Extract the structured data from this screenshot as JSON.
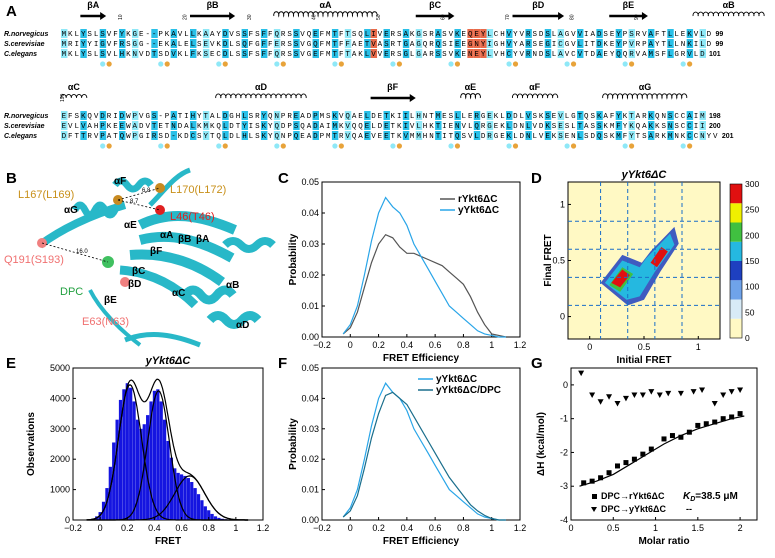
{
  "panel_letters": {
    "A": "A",
    "B": "B",
    "C": "C",
    "D": "D",
    "E": "E",
    "F": "F",
    "G": "G"
  },
  "alignment": {
    "species": [
      "R.norvegicus",
      "S.cerevisiae",
      "C.elegans"
    ],
    "block1": {
      "ss": [
        "βA",
        "βB",
        "αA",
        "βC",
        "βD",
        "βE",
        "αB"
      ],
      "seqs": [
        "MKLYSLSVFYKGE--PKAVLLKAAYDVSSFSFFQRSSVQEFMTFTSQLIVERSAKGSRASVKEQEYLCHVYVRSDSLAGVVIADSEYPSRVAFTLLEKVLD",
        "MRIYYIGVFRSGG--EKALELSEVKDLSQFGFFERSSVGQFMTFFAETVASRTGAGQRQSIEEGNYIGHVYARSEGICGVLITDKEYPVRPAYTLLNKILD",
        "MKLYSLSVLHKNVDTSDVKLFKSECDLSSFSFFQRSSVGEFMTFTAKLVVERSGLGARSSVKENEYLVHCYVRNDSLAVCVTDAEYQQRVAMSFLGRVLD"
      ],
      "ends": [
        "99",
        "99",
        "101"
      ],
      "ticks": [
        "10",
        "20",
        "30",
        "40",
        "50",
        "60",
        "70",
        "80",
        "90"
      ]
    },
    "block2": {
      "ss": [
        "αC",
        "αD",
        "βF",
        "αE",
        "αF",
        "αG"
      ],
      "seqs": [
        "EFSKQVDRIDWPVGS-PATIHYTALDGHLSRYQNPREADPMSKVQAELDETKIILHNTMESLLERGEKLDDLVSKSEVLGTQSKAFYKTARKQNSCCAIM",
        "EVLVAHPKEEWADVTETNDALKMKQLDTYISKYQDPSQADAIMKVQQELDETKIVLHKTIENVLQRGEKLDNLVDKSESLTASSKMFYKQAKKSNSCCII",
        "DFTTRVPATQWPGIRSD-KDCSYTQLDLHLSKYQNPQEADPMTRVQAEVEETKVMMHNTITQSVLDRGEKLDNLVEKSENLSDQSKMFYTSARKMNKCCNYV"
      ],
      "ends": [
        "198",
        "200",
        "201"
      ],
      "ticks": [
        "100",
        "110",
        "120",
        "130",
        "140",
        "150",
        "160",
        "170",
        "180",
        "190"
      ]
    }
  },
  "structure_labels": {
    "l170": "L170(L172)",
    "l167": "L167(L169)",
    "l46": "L46(T46)",
    "q191": "Q191(S193)",
    "dpc": "DPC",
    "e63": "E63(N63)",
    "d1": "6.8",
    "d2": "8.7",
    "d3": "16.0",
    "aF": "αF",
    "aG": "αG",
    "aE": "αE",
    "aA": "αA",
    "bB": "βB",
    "bA": "βA",
    "bF": "βF",
    "bC": "βC",
    "bD": "βD",
    "bE": "βE",
    "aC": "αC",
    "aB": "αB",
    "aD": "αD"
  },
  "colors": {
    "cyan": "#29c0e8",
    "lightcyan": "#8fe8f7",
    "orange": "#e8a33a",
    "red": "#e86a4a",
    "ribbon": "#28b8c8",
    "blue": "#1515e0",
    "grey": "#555555",
    "dark": "#1a6e8c"
  },
  "chart_data": [
    {
      "id": "C",
      "type": "line",
      "xlabel": "FRET Efficiency",
      "ylabel": "Probability",
      "xlim": [
        -0.2,
        1.2
      ],
      "ylim": [
        0,
        0.05
      ],
      "xticks": [
        "−0.2",
        "0",
        "0.2",
        "0.4",
        "0.6",
        "0.8",
        "1",
        "1.2"
      ],
      "yticks": [
        "0.00",
        "0.01",
        "0.02",
        "0.03",
        "0.04",
        "0.05"
      ],
      "series": [
        {
          "name": "rYkt6ΔC",
          "color": "#555555",
          "x": [
            -0.05,
            0.0,
            0.05,
            0.1,
            0.15,
            0.2,
            0.25,
            0.3,
            0.35,
            0.4,
            0.45,
            0.5,
            0.55,
            0.6,
            0.65,
            0.7,
            0.75,
            0.8,
            0.85,
            0.9,
            0.95,
            1.0,
            1.05,
            1.1
          ],
          "y": [
            0.001,
            0.003,
            0.008,
            0.016,
            0.024,
            0.03,
            0.033,
            0.032,
            0.029,
            0.027,
            0.027,
            0.026,
            0.025,
            0.024,
            0.023,
            0.021,
            0.019,
            0.017,
            0.013,
            0.008,
            0.004,
            0.001,
            0.0005,
            0.0
          ]
        },
        {
          "name": "yYkt6ΔC",
          "color": "#29a5e8",
          "x": [
            -0.05,
            0.0,
            0.05,
            0.1,
            0.15,
            0.2,
            0.25,
            0.3,
            0.35,
            0.4,
            0.45,
            0.5,
            0.55,
            0.6,
            0.65,
            0.7,
            0.75,
            0.8,
            0.85,
            0.9,
            0.95,
            1.0,
            1.05,
            1.1
          ],
          "y": [
            0.001,
            0.004,
            0.01,
            0.02,
            0.031,
            0.04,
            0.045,
            0.042,
            0.04,
            0.036,
            0.03,
            0.026,
            0.022,
            0.018,
            0.014,
            0.01,
            0.008,
            0.006,
            0.004,
            0.002,
            0.001,
            0.0005,
            0.0,
            0.0
          ]
        }
      ]
    },
    {
      "id": "D",
      "type": "heatmap",
      "title": "yYkt6ΔC",
      "xlabel": "Initial FRET",
      "ylabel": "Final FRET",
      "xlim": [
        -0.2,
        1.2
      ],
      "ylim": [
        -0.2,
        1.2
      ],
      "xticks": [
        "0",
        "0.5",
        "1"
      ],
      "yticks": [
        "0",
        "0.5",
        "1"
      ],
      "colorbar": {
        "ticks": [
          "0",
          "50",
          "100",
          "150",
          "200",
          "250",
          "300"
        ]
      },
      "grid_lines": [
        0.1,
        0.35,
        0.6,
        0.85
      ]
    },
    {
      "id": "E",
      "type": "bar",
      "title": "yYkt6ΔC",
      "xlabel": "FRET",
      "ylabel": "Observations",
      "xlim": [
        -0.2,
        1.2
      ],
      "ylim": [
        0,
        5000
      ],
      "xticks": [
        "−0.2",
        "0",
        "0.2",
        "0.4",
        "0.6",
        "0.8",
        "1",
        "1.2"
      ],
      "yticks": [
        "0",
        "1000",
        "2000",
        "3000",
        "4000",
        "5000"
      ],
      "bin_centers": [
        -0.05,
        -0.025,
        0.0,
        0.025,
        0.05,
        0.075,
        0.1,
        0.125,
        0.15,
        0.175,
        0.2,
        0.225,
        0.25,
        0.275,
        0.3,
        0.325,
        0.35,
        0.375,
        0.4,
        0.425,
        0.45,
        0.475,
        0.5,
        0.525,
        0.55,
        0.575,
        0.6,
        0.625,
        0.65,
        0.675,
        0.7,
        0.725,
        0.75,
        0.775,
        0.8,
        0.825,
        0.85,
        0.875,
        0.9,
        0.925,
        0.95,
        0.975,
        1.0,
        1.025,
        1.05
      ],
      "values": [
        50,
        120,
        260,
        600,
        1050,
        1750,
        2550,
        3300,
        3950,
        4300,
        4500,
        4350,
        3900,
        3300,
        3000,
        3150,
        3450,
        3900,
        4250,
        4300,
        3900,
        3300,
        2600,
        2050,
        1700,
        1550,
        1500,
        1450,
        1380,
        1250,
        1050,
        850,
        650,
        450,
        320,
        200,
        120,
        70,
        40,
        25,
        15,
        10,
        5,
        3,
        1
      ],
      "fits": [
        {
          "mu": 0.22,
          "sigma": 0.085,
          "amp": 4450
        },
        {
          "mu": 0.43,
          "sigma": 0.08,
          "amp": 4250
        },
        {
          "mu": 0.66,
          "sigma": 0.11,
          "amp": 1450
        }
      ]
    },
    {
      "id": "F",
      "type": "line",
      "xlabel": "FRET Efficiency",
      "ylabel": "Probability",
      "xlim": [
        -0.2,
        1.2
      ],
      "ylim": [
        0,
        0.05
      ],
      "xticks": [
        "−0.2",
        "0",
        "0.2",
        "0.4",
        "0.6",
        "0.8",
        "1",
        "1.2"
      ],
      "yticks": [
        "0.00",
        "0.01",
        "0.02",
        "0.03",
        "0.04",
        "0.05"
      ],
      "series": [
        {
          "name": "yYkt6ΔC",
          "color": "#29a5e8",
          "x": [
            -0.05,
            0.0,
            0.05,
            0.1,
            0.15,
            0.2,
            0.25,
            0.3,
            0.35,
            0.4,
            0.45,
            0.5,
            0.55,
            0.6,
            0.65,
            0.7,
            0.75,
            0.8,
            0.85,
            0.9,
            0.95,
            1.0,
            1.05,
            1.1
          ],
          "y": [
            0.001,
            0.004,
            0.01,
            0.02,
            0.031,
            0.04,
            0.045,
            0.042,
            0.04,
            0.036,
            0.03,
            0.026,
            0.022,
            0.018,
            0.014,
            0.01,
            0.008,
            0.006,
            0.004,
            0.002,
            0.001,
            0.0005,
            0.0,
            0.0
          ]
        },
        {
          "name": "yYkt6ΔC/DPC",
          "color": "#1a6e8c",
          "x": [
            -0.05,
            0.0,
            0.05,
            0.1,
            0.15,
            0.2,
            0.25,
            0.3,
            0.35,
            0.4,
            0.45,
            0.5,
            0.55,
            0.6,
            0.65,
            0.7,
            0.75,
            0.8,
            0.85,
            0.9,
            0.95,
            1.0,
            1.05,
            1.1
          ],
          "y": [
            0.001,
            0.003,
            0.008,
            0.017,
            0.027,
            0.035,
            0.041,
            0.042,
            0.04,
            0.038,
            0.034,
            0.03,
            0.026,
            0.022,
            0.018,
            0.014,
            0.011,
            0.008,
            0.005,
            0.003,
            0.0015,
            0.0005,
            0.0,
            0.0
          ]
        }
      ]
    },
    {
      "id": "G",
      "type": "scatter",
      "xlabel": "Molar ratio",
      "ylabel": "ΔH (kcal/mol)",
      "xlim": [
        0,
        2.2
      ],
      "ylim": [
        -4,
        0.5
      ],
      "xticks": [
        "0",
        "0.5",
        "1",
        "1.5",
        "2"
      ],
      "yticks": [
        "0",
        "-1",
        "-2",
        "-3",
        "-4"
      ],
      "kd_label": "K",
      "kd_sub": "D",
      "kd_value": "=38.5 μM",
      "kd_dash": "--",
      "series": [
        {
          "name": "DPC→rYkt6ΔC",
          "marker": "square",
          "x": [
            0.15,
            0.25,
            0.35,
            0.45,
            0.55,
            0.65,
            0.75,
            0.85,
            0.95,
            1.1,
            1.2,
            1.3,
            1.4,
            1.5,
            1.6,
            1.7,
            1.8,
            1.9,
            2.0
          ],
          "y": [
            -2.9,
            -2.85,
            -2.75,
            -2.6,
            -2.4,
            -2.3,
            -2.2,
            -2.05,
            -1.9,
            -1.6,
            -1.5,
            -1.55,
            -1.4,
            -1.2,
            -1.15,
            -1.1,
            -1.0,
            -0.95,
            -0.85
          ]
        },
        {
          "name": "DPC→yYkt6ΔC",
          "marker": "triangle",
          "x": [
            0.12,
            0.25,
            0.35,
            0.45,
            0.55,
            0.65,
            0.75,
            0.85,
            0.95,
            1.05,
            1.15,
            1.3,
            1.45,
            1.55,
            1.7,
            1.8,
            1.9,
            2.0
          ],
          "y": [
            0.35,
            -0.3,
            -0.5,
            -0.35,
            -0.55,
            -0.4,
            -0.3,
            -0.3,
            -0.2,
            -0.3,
            -0.25,
            -0.25,
            -0.2,
            -0.15,
            -0.55,
            -0.3,
            -0.2,
            -0.15
          ]
        }
      ],
      "fit": {
        "x": [
          0.1,
          0.3,
          0.5,
          0.7,
          0.9,
          1.1,
          1.3,
          1.5,
          1.7,
          1.9,
          2.05
        ],
        "y": [
          -3.0,
          -2.85,
          -2.65,
          -2.35,
          -2.05,
          -1.75,
          -1.5,
          -1.3,
          -1.15,
          -1.0,
          -0.92
        ]
      }
    }
  ]
}
